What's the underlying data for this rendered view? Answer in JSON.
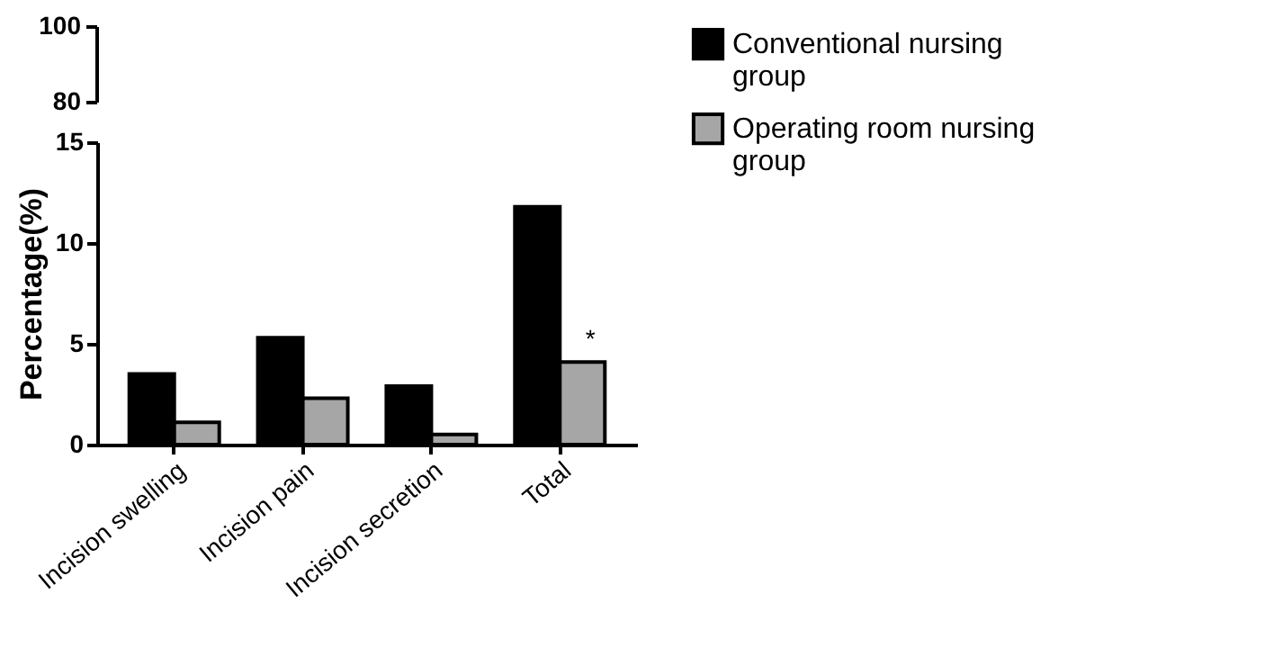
{
  "chart_data": [
    {
      "type": "other",
      "annotations": [
        "100",
        "80"
      ]
    },
    {
      "type": "bar",
      "ylabel": "Percentage(%)",
      "categories": [
        "Incision swelling",
        "Incision pain",
        "Incision secretion",
        "Total"
      ],
      "series": [
        {
          "name": "Conventional nursing group",
          "color": "#000000",
          "values": [
            3.5,
            5.3,
            2.9,
            11.8
          ]
        },
        {
          "name": "Operating room nursing group",
          "color": "#a6a6a6",
          "values": [
            1.1,
            2.3,
            0.5,
            4.1
          ]
        }
      ],
      "ylim": [
        0,
        15
      ],
      "yticks": [
        0,
        5,
        10,
        15
      ],
      "grid": false,
      "legend": "right",
      "annotations": [
        {
          "text": "*",
          "x": "Total",
          "y": 4.1
        }
      ]
    }
  ]
}
